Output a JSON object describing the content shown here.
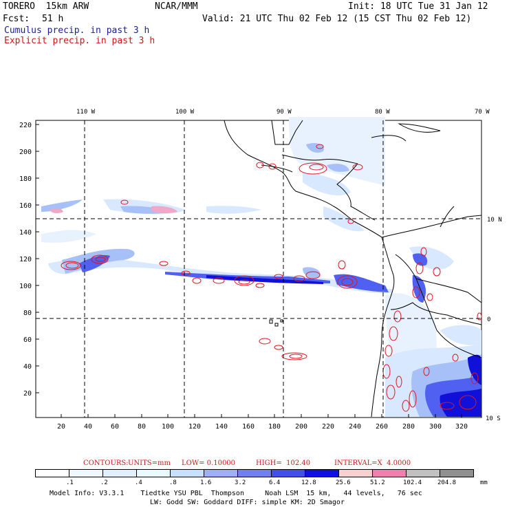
{
  "header": {
    "model": "TORERO  15km ARW",
    "org": "NCAR/MMM",
    "init": "Init: 18 UTC Tue 31 Jan 12",
    "fcst_label": "Fcst:",
    "fcst_value": "51 h",
    "valid": "Valid: 21 UTC Thu 02 Feb 12 (15 CST Thu 02 Feb 12)",
    "line_cumulus": "Cumulus precip. in past 3 h",
    "line_explicit": "Explicit precip. in past 3 h"
  },
  "map": {
    "top_lon_labels": [
      "110 W",
      "100 W",
      "90 W",
      "80 W",
      "70 W"
    ],
    "right_lat_labels": [
      "10 N",
      "0",
      "10 S"
    ],
    "y_ticks": [
      "220",
      "200",
      "180",
      "160",
      "140",
      "120",
      "100",
      "80",
      "60",
      "40",
      "20"
    ],
    "x_ticks": [
      "20",
      "40",
      "60",
      "80",
      "100",
      "120",
      "140",
      "160",
      "180",
      "200",
      "220",
      "240",
      "260",
      "280",
      "300",
      "320"
    ],
    "colors": {
      "contour": "#e0141e",
      "blue_dark": "#1010d8",
      "blue_mid": "#5060f0",
      "blue_light": "#a8c0f8",
      "blue_pale": "#d8e8ff",
      "pink": "#f0a8c8",
      "coast": "#000000",
      "grid": "#000000"
    }
  },
  "contours_info": {
    "label": "CONTOURS:",
    "units": "UNITS=mm",
    "low": "LOW= 0.10000",
    "high": "HIGH=  102.40",
    "interval": "INTERVAL=X  4.0000"
  },
  "legend": {
    "colors": [
      "#ffffff",
      "#f0f8ff",
      "#e0f0ff",
      "#e8fcff",
      "#c8e0ff",
      "#a0b0f8",
      "#7080f0",
      "#4050e8",
      "#1010e0",
      "#f8d0d0",
      "#f080b0",
      "#c0c0c0",
      "#909090",
      "#d8a8f8"
    ],
    "labels": [
      ".1",
      ".2",
      ".4",
      ".8",
      "1.6",
      "3.2",
      "6.4",
      "12.8",
      "25.6",
      "51.2",
      "102.4",
      "204.8"
    ],
    "unit": "mm"
  },
  "footer": {
    "line1": "Model Info: V3.3.1    Tiedtke YSU PBL  Thompson     Noah LSM  15 km,   44 levels,   76 sec",
    "line2": "LW: Godd SW: Goddard DIFF: simple KM: 2D Smagor"
  }
}
